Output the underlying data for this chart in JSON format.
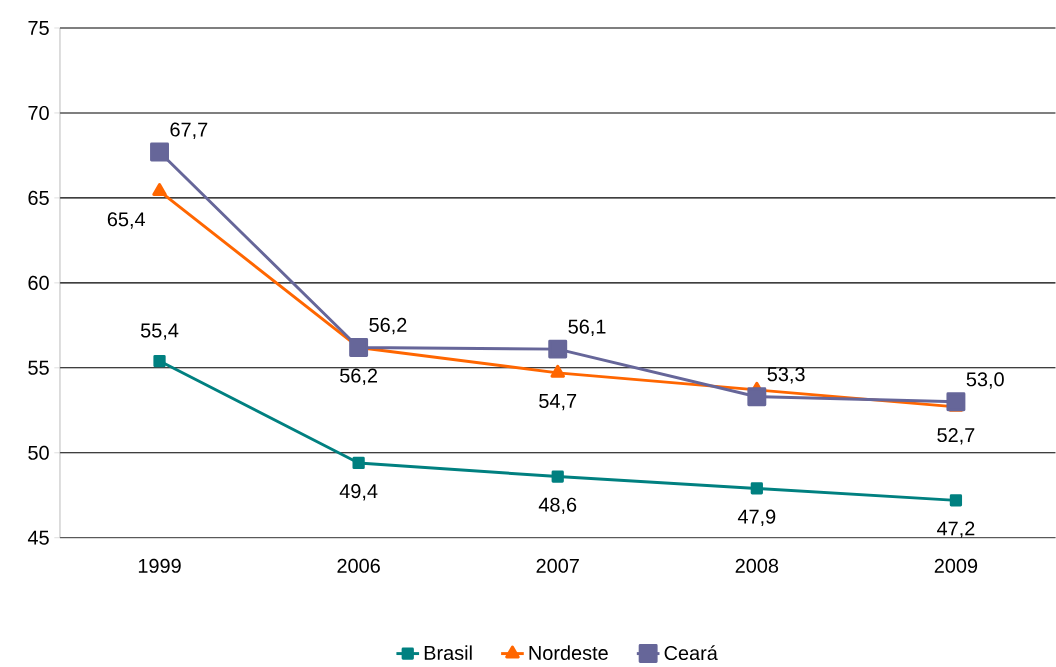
{
  "chart_data": {
    "type": "line",
    "categories": [
      "1999",
      "2006",
      "2007",
      "2008",
      "2009"
    ],
    "series": [
      {
        "name": "Brasil",
        "color": "#008080",
        "marker": "square",
        "values": [
          55.4,
          49.4,
          48.6,
          47.9,
          47.2
        ]
      },
      {
        "name": "Nordeste",
        "color": "#ff6600",
        "marker": "triangle",
        "values": [
          65.4,
          56.2,
          54.7,
          53.7,
          52.7
        ]
      },
      {
        "name": "Ceará",
        "color": "#666699",
        "marker": "square",
        "values": [
          67.7,
          56.2,
          56.1,
          53.3,
          53.0
        ]
      }
    ],
    "value_labels": [
      [
        "55,4",
        "49,4",
        "48,6",
        "47,9",
        "47,2"
      ],
      [
        "65,4",
        "56,2",
        "54,7",
        null,
        "52,7"
      ],
      [
        "67,7",
        "56,2",
        "56,1",
        "53,3",
        "53,0"
      ]
    ],
    "ylim": [
      45,
      75
    ],
    "yticks": [
      45,
      50,
      55,
      60,
      65,
      70,
      75
    ],
    "grid": "y",
    "legend": "bottom"
  }
}
